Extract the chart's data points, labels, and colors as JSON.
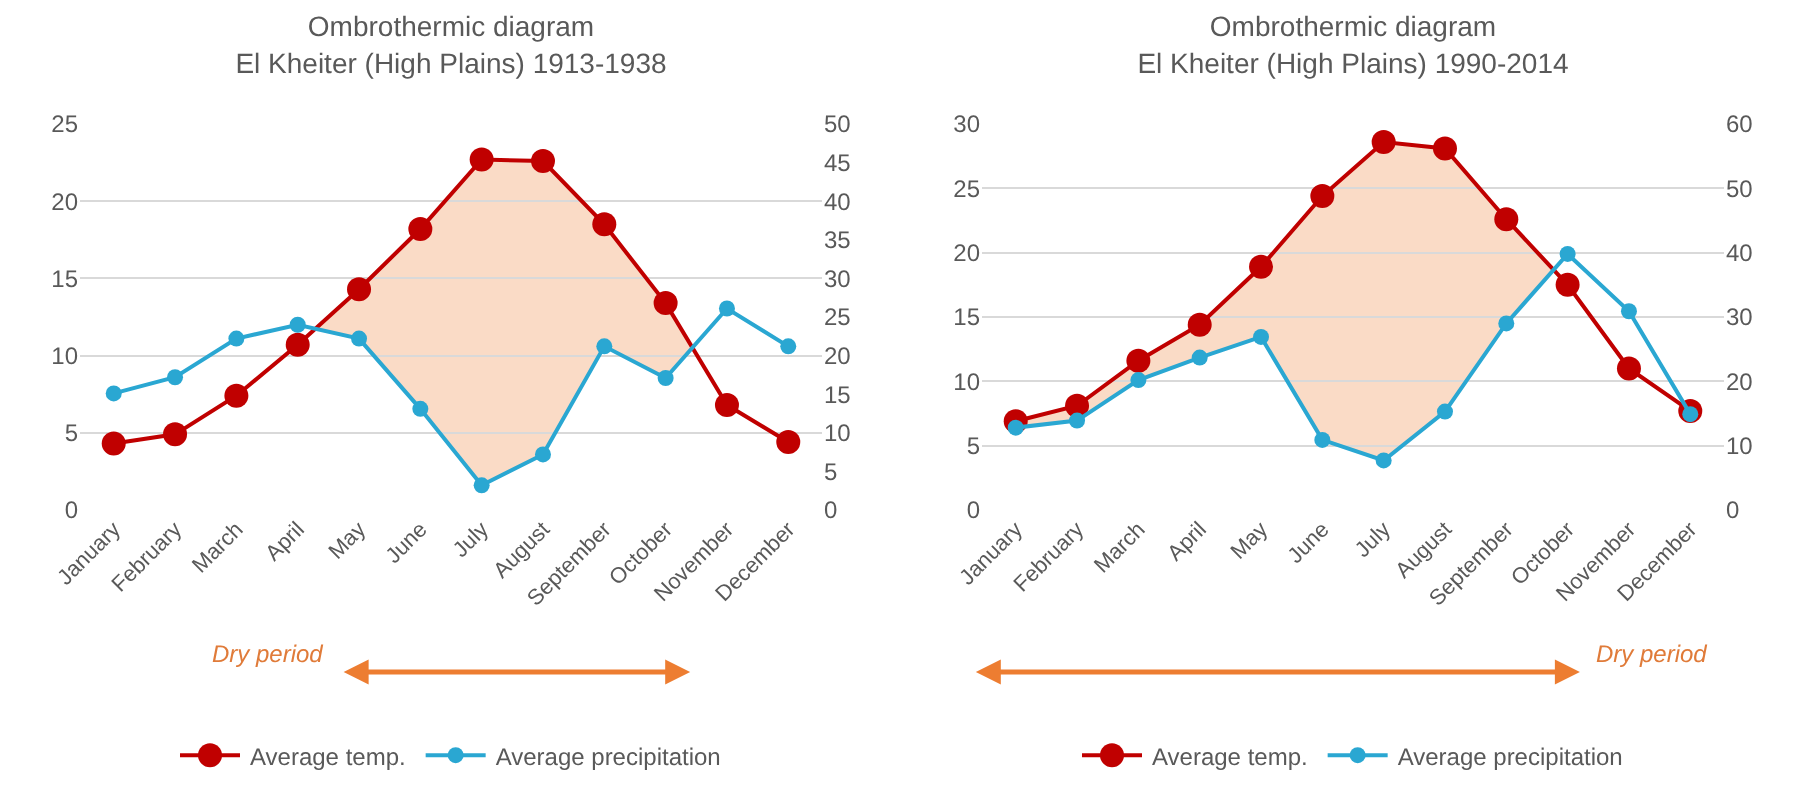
{
  "chart_data": [
    {
      "type": "line",
      "title": "Ombrothermic diagram\nEl Kheiter (High Plains) 1913-1938",
      "categories": [
        "January",
        "February",
        "March",
        "April",
        "May",
        "June",
        "July",
        "August",
        "September",
        "October",
        "November",
        "December"
      ],
      "series": [
        {
          "name": "Average temp.",
          "color": "#c00000",
          "values": [
            4.3,
            4.9,
            7.4,
            10.7,
            14.3,
            18.2,
            22.7,
            22.6,
            18.5,
            13.4,
            6.8,
            4.4
          ]
        },
        {
          "name": "Average precipitation",
          "color": "#2aa7d2",
          "axis": "y2",
          "values": [
            15.1,
            17.2,
            22.2,
            24,
            22.2,
            13.1,
            3.2,
            7.2,
            21.2,
            17.1,
            26.1,
            21.2
          ]
        }
      ],
      "ylim": [
        0,
        25
      ],
      "yticks": [
        0,
        5,
        10,
        15,
        20,
        25
      ],
      "y2lim": [
        0,
        50
      ],
      "y2ticks": [
        0,
        5,
        10,
        15,
        20,
        25,
        30,
        35,
        40,
        45,
        50
      ],
      "grid": "y",
      "legend": "bottom",
      "marker": "circle",
      "line_style": "solid",
      "annotations": [
        "Dry period"
      ]
    },
    {
      "type": "line",
      "title": "Ombrothermic diagram\nEl Kheiter (High Plains) 1990-2014",
      "categories": [
        "January",
        "February",
        "March",
        "April",
        "May",
        "June",
        "July",
        "August",
        "September",
        "October",
        "November",
        "December"
      ],
      "series": [
        {
          "name": "Average temp.",
          "color": "#c00000",
          "values": [
            6.9,
            8.1,
            11.6,
            14.4,
            18.9,
            24.4,
            28.6,
            28.1,
            22.6,
            17.5,
            11.0,
            7.7
          ]
        },
        {
          "name": "Average precipitation",
          "color": "#2aa7d2",
          "axis": "y2",
          "values": [
            12.8,
            13.9,
            20.2,
            23.7,
            26.9,
            10.9,
            7.7,
            15.3,
            29,
            39.8,
            30.9,
            14.9
          ]
        }
      ],
      "ylim": [
        0,
        30
      ],
      "yticks": [
        0,
        5,
        10,
        15,
        20,
        25,
        30
      ],
      "y2lim": [
        0,
        60
      ],
      "y2ticks": [
        0,
        10,
        20,
        30,
        40,
        50,
        60
      ],
      "grid": "y",
      "legend": "bottom",
      "marker": "circle",
      "line_style": "solid",
      "annotations": [
        "Dry period"
      ]
    }
  ]
}
